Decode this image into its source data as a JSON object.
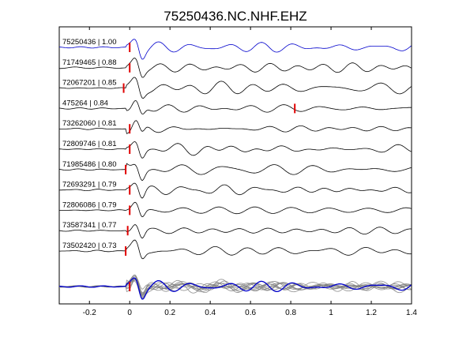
{
  "chart_data": {
    "type": "line",
    "title": "75250436.NC.NHF.EHZ",
    "xlabel": "",
    "ylabel": "",
    "xlim": [
      -0.35,
      1.4
    ],
    "xticks": [
      -0.2,
      0,
      0.2,
      0.4,
      0.6,
      0.8,
      1,
      1.2,
      1.4
    ],
    "xtick_labels": [
      "-0.2",
      "0",
      "0.2",
      "0.4",
      "0.6",
      "0.8",
      "1",
      "1.2",
      "1.4"
    ],
    "grid": false,
    "pick_marker_color": "#e00000",
    "reference_color": "#0000cc",
    "match_color": "#000000",
    "stack_color": "#808080",
    "traces": [
      {
        "label": "75250436 | 1.00",
        "pick_time": 0.0,
        "color": "#0000cc"
      },
      {
        "label": "71749465 | 0.88",
        "pick_time": 0.0,
        "color": "#000000"
      },
      {
        "label": "72067201 | 0.85",
        "pick_time": -0.03,
        "color": "#000000"
      },
      {
        "label": "475264 | 0.84",
        "pick_time": 0.82,
        "color": "#000000"
      },
      {
        "label": "73262060 | 0.81",
        "pick_time": 0.0,
        "color": "#000000"
      },
      {
        "label": "72809746 | 0.81",
        "pick_time": 0.0,
        "color": "#000000"
      },
      {
        "label": "71985486 | 0.80",
        "pick_time": -0.02,
        "color": "#000000"
      },
      {
        "label": "72693291 | 0.79",
        "pick_time": 0.0,
        "color": "#000000"
      },
      {
        "label": "72806086 | 0.79",
        "pick_time": 0.0,
        "color": "#000000"
      },
      {
        "label": "73587341 | 0.77",
        "pick_time": -0.01,
        "color": "#000000"
      },
      {
        "label": "73502420 | 0.73",
        "pick_time": -0.02,
        "color": "#000000"
      }
    ],
    "stack": {
      "pick_time": 0.0,
      "color": "#0000cc"
    }
  }
}
